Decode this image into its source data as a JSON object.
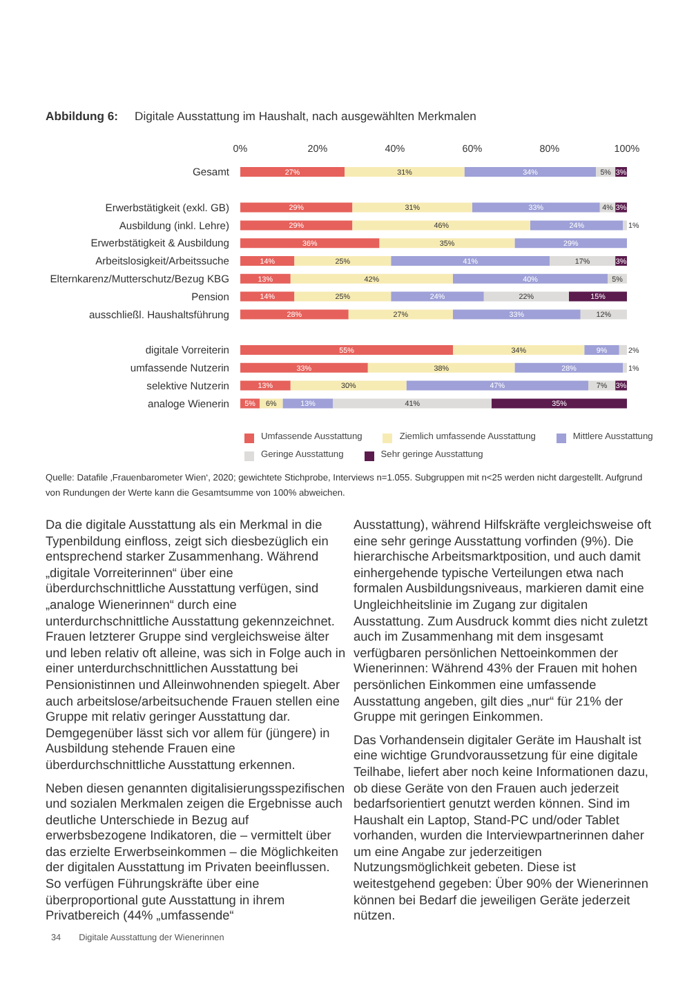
{
  "chart_data": {
    "type": "bar",
    "orientation": "horizontal",
    "stacked": true,
    "title": "Abbildung 6:",
    "subtitle": "Digitale Ausstattung im Haushalt, nach ausgewählten Merkmalen",
    "categories": [
      "Gesamt",
      null,
      "Erwerbstätigkeit (exkl. GB)",
      "Ausbildung (inkl. Lehre)",
      "Erwerbstätigkeit & Ausbildung",
      "Arbeitslosigkeit/Arbeitssuche",
      "Elternkarenz/Mutterschutz/Bezug KBG",
      "Pension",
      "ausschließl. Haushaltsführung",
      null,
      "digitale Vorreiterin",
      "umfassende Nutzerin",
      "selektive Nutzerin",
      "analoge Wienerin"
    ],
    "series": [
      {
        "name": "Umfassende Ausstattung",
        "color": "#e6615b",
        "values": [
          27,
          null,
          29,
          29,
          36,
          14,
          13,
          14,
          28,
          null,
          55,
          33,
          13,
          5
        ],
        "value_labels": [
          "27%",
          null,
          "29%",
          "29%",
          "36%",
          "14%",
          "13%",
          "14%",
          "28%",
          null,
          "55%",
          "33%",
          "13%",
          "5%"
        ]
      },
      {
        "name": "Ziemlich umfassende Ausstattung",
        "color": "#f7ebb4",
        "values": [
          31,
          null,
          31,
          46,
          35,
          25,
          42,
          25,
          27,
          null,
          34,
          38,
          30,
          6
        ],
        "value_labels": [
          "31%",
          null,
          "31%",
          "46%",
          "35%",
          "25%",
          "42%",
          "25%",
          "27%",
          null,
          "34%",
          "38%",
          "30%",
          "6%"
        ]
      },
      {
        "name": "Mittlere Ausstattung",
        "color": "#9ea0d7",
        "values": [
          34,
          null,
          33,
          24,
          29,
          41,
          40,
          24,
          33,
          null,
          9,
          28,
          47,
          13
        ],
        "value_labels": [
          "34%",
          null,
          "33%",
          "24%",
          "29%",
          "41%",
          "40%",
          "24%",
          "33%",
          null,
          "9%",
          "28%",
          "47%",
          "13%"
        ]
      },
      {
        "name": "Geringe Ausstattung",
        "color": "#dddcda",
        "values": [
          5,
          null,
          4,
          1,
          null,
          17,
          5,
          22,
          12,
          null,
          2,
          1,
          7,
          41
        ],
        "value_labels": [
          "5%",
          null,
          "4%",
          "1%",
          null,
          "17%",
          "5%",
          "22%",
          "12%",
          null,
          "2%",
          "1%",
          "7%",
          "41%"
        ]
      },
      {
        "name": "Sehr geringe Ausstattung",
        "color": "#5b1b4d",
        "values": [
          3,
          null,
          3,
          null,
          null,
          3,
          null,
          15,
          null,
          null,
          null,
          null,
          3,
          35
        ],
        "value_labels": [
          "3%",
          null,
          "3%",
          null,
          null,
          "3%",
          null,
          "15%",
          null,
          null,
          null,
          null,
          "3%",
          "35%"
        ]
      }
    ],
    "xlim": [
      0,
      100
    ],
    "xticks": [
      {
        "value": 0,
        "label": "0%"
      },
      {
        "value": 20,
        "label": "20%"
      },
      {
        "value": 40,
        "label": "40%"
      },
      {
        "value": 60,
        "label": "60%"
      },
      {
        "value": 80,
        "label": "80%"
      },
      {
        "value": 100,
        "label": "100%"
      }
    ],
    "legend": "bottom",
    "annotations": [
      "Quelle: Datafile ‚Frauenbarometer Wien‘, 2020; gewichtete Stichprobe, Interviews n=1.055. Subgruppen mit n<25 werden nicht dargestellt. Aufgrund von Rundungen der Werte kann die Gesamtsumme von 100% abweichen.",
      "Da die digitale Ausstattung als ein Merkmal in die Typenbildung einfloss, zeigt sich diesbezüglich ein entsprechend starker Zusammenhang. Während „digitale Vorreiterinnen“ über eine überdurchschnittliche Ausstattung verfügen, sind „analoge Wienerinnen“ durch eine unterdurchschnittliche Ausstattung gekennzeichnet. Frauen letzterer Gruppe sind vergleichsweise älter und leben relativ oft alleine, was sich in Folge auch in einer unterdurchschnittlichen Ausstattung bei Pensionistinnen und Alleinwohnenden spiegelt. Aber auch arbeitslose/arbeitsuchende Frauen stellen eine Gruppe mit relativ geringer Ausstattung dar. Demgegenüber lässt sich vor allem für (jüngere) in Ausbildung stehende Frauen eine überdurchschnittliche Ausstattung erkennen.",
      "Neben diesen genannten digitalisierungsspezifischen und sozialen Merkmalen zeigen die Ergebnisse auch deutliche Unterschiede in Bezug auf erwerbsbezogene Indikatoren, die – vermittelt über das erzielte Erwerbseinkommen – die Möglichkeiten der digitalen Ausstattung im Privaten beeinflussen. So verfügen Führungskräfte über eine überproportional gute Ausstattung in ihrem Privatbereich (44% „umfassende“",
      "Ausstattung), während Hilfskräfte vergleichsweise oft eine sehr geringe Ausstattung vorfinden (9%). Die hierarchische Arbeitsmarktposition, und auch damit einhergehende typische Verteilungen etwa nach formalen Ausbildungsniveaus, markieren damit eine Ungleichheitslinie im Zugang zur digitalen Ausstattung. Zum Ausdruck kommt dies nicht zuletzt auch im Zusammenhang mit dem insgesamt verfügbaren persönlichen Nettoeinkommen der Wienerinnen: Während 43% der Frauen mit hohen persönlichen Einkommen eine umfassende Ausstattung angeben, gilt dies „nur“ für 21% der Gruppe mit geringen Einkommen.",
      "Das Vorhandensein digitaler Geräte im Haushalt ist eine wichtige Grundvoraussetzung für eine digitale Teilhabe, liefert aber noch keine Informationen dazu, ob diese Geräte von den Frauen auch jederzeit bedarfsorientiert genutzt werden können. Sind im Haushalt ein Laptop, Stand-PC und/oder Tablet vorhanden, wurden die Interviewpartnerinnen daher um eine Angabe zur jederzeitigen Nutzungsmöglichkeit gebeten. Diese ist weitestgehend gegeben: Über 90% der Wienerinnen können bei Bedarf die jeweiligen Geräte jederzeit nützen.",
      "34",
      "Digitale Ausstattung der Wienerinnen"
    ]
  }
}
